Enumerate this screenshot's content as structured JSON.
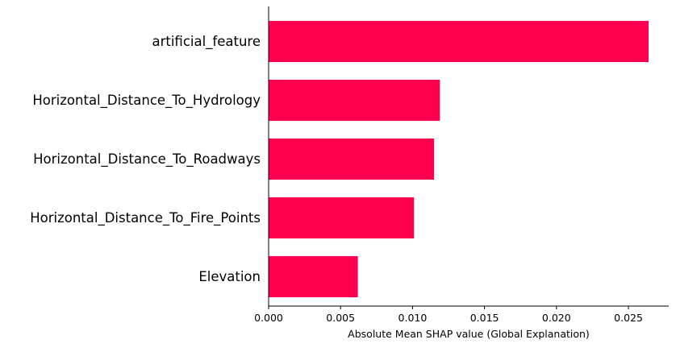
{
  "chart_data": {
    "type": "bar",
    "orientation": "horizontal",
    "categories": [
      "artificial_feature",
      "Horizontal_Distance_To_Hydrology",
      "Horizontal_Distance_To_Roadways",
      "Horizontal_Distance_To_Fire_Points",
      "Elevation"
    ],
    "values": [
      0.0264,
      0.0119,
      0.0115,
      0.0101,
      0.0062
    ],
    "xlabel": "Absolute Mean SHAP value (Global Explanation)",
    "xlim": [
      0,
      0.0278
    ],
    "xticks": [
      "0.000",
      "0.005",
      "0.010",
      "0.015",
      "0.020",
      "0.025"
    ],
    "tick_values": [
      0,
      0.005,
      0.01,
      0.015,
      0.02,
      0.025
    ],
    "bar_color": "#ff0051",
    "grid": false
  }
}
